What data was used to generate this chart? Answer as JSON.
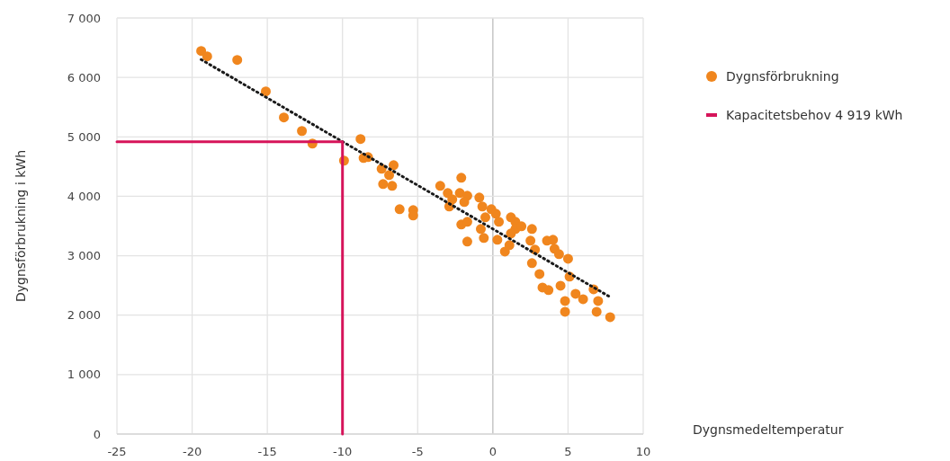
{
  "chart_data": {
    "type": "scatter",
    "xlabel": "Dygnsmedeltemperatur",
    "ylabel": "Dygnsförbrukning i kWh",
    "xlim": [
      -25,
      10
    ],
    "xticks": [
      -25,
      -20,
      -15,
      -10,
      -5,
      0,
      5,
      10
    ],
    "ylim": [
      0,
      7000
    ],
    "yticks": [
      {
        "value": 0,
        "label": "0"
      },
      {
        "value": 1000,
        "label": "1 000"
      },
      {
        "value": 2000,
        "label": "2 000"
      },
      {
        "value": 3000,
        "label": "3 000"
      },
      {
        "value": 4000,
        "label": "4 000"
      },
      {
        "value": 5000,
        "label": "5 000"
      },
      {
        "value": 6000,
        "label": "6 000"
      },
      {
        "value": 7000,
        "label": "7 000"
      }
    ],
    "grid": true,
    "legend": "right",
    "marker": "circle",
    "series": [
      {
        "name": "Dygnsförbrukning",
        "color": "#f0861e",
        "x": [
          -19.4,
          -19.0,
          -17.0,
          -15.1,
          -13.9,
          -12.7,
          -12.0,
          -9.9,
          -8.8,
          -8.6,
          -8.3,
          -7.4,
          -6.9,
          -6.6,
          -7.3,
          -6.7,
          -6.2,
          -5.3,
          -5.3,
          -2.1,
          -3.5,
          -3.0,
          -2.7,
          -2.2,
          -1.7,
          -1.9,
          -2.9,
          -0.9,
          -0.7,
          -0.1,
          0.2,
          -0.5,
          -2.1,
          -1.7,
          -0.8,
          -0.6,
          -1.7,
          0.4,
          0.3,
          0.8,
          1.1,
          1.2,
          1.5,
          1.5,
          1.9,
          2.6,
          2.5,
          2.8,
          1.2,
          3.6,
          4.0,
          4.1,
          4.4,
          5.0,
          2.6,
          3.1,
          5.1,
          3.3,
          3.7,
          4.5,
          5.5,
          6.0,
          4.8,
          4.8,
          6.7,
          7.0,
          6.9,
          7.8
        ],
        "values": [
          6445,
          6355,
          6294,
          5765,
          5326,
          5099,
          4887,
          4600,
          4963,
          4645,
          4660,
          4463,
          4357,
          4524,
          4206,
          4176,
          3783,
          3767,
          3676,
          4312,
          4176,
          4055,
          3949,
          4055,
          4010,
          3904,
          3828,
          3979,
          3828,
          3783,
          3707,
          3646,
          3525,
          3571,
          3450,
          3298,
          3238,
          3571,
          3268,
          3071,
          3177,
          3646,
          3571,
          3450,
          3495,
          3450,
          3253,
          3102,
          3374,
          3253,
          3268,
          3117,
          3026,
          2950,
          2875,
          2693,
          2648,
          2466,
          2421,
          2496,
          2360,
          2269,
          2239,
          2058,
          2436,
          2239,
          2058,
          1967
        ]
      },
      {
        "type": "line",
        "color": "#1a1a1a",
        "line_style": "dotted",
        "marker": "none",
        "x": [
          -19.4,
          7.7
        ],
        "values": [
          6300,
          2320
        ]
      },
      {
        "name": "Kapacitetsbehov 4 919 kWh",
        "type": "line",
        "color": "#d6145a",
        "line_style": "solid",
        "marker": "none",
        "x": [
          -25,
          -10,
          -10
        ],
        "values": [
          4919,
          4919,
          0
        ]
      }
    ]
  }
}
